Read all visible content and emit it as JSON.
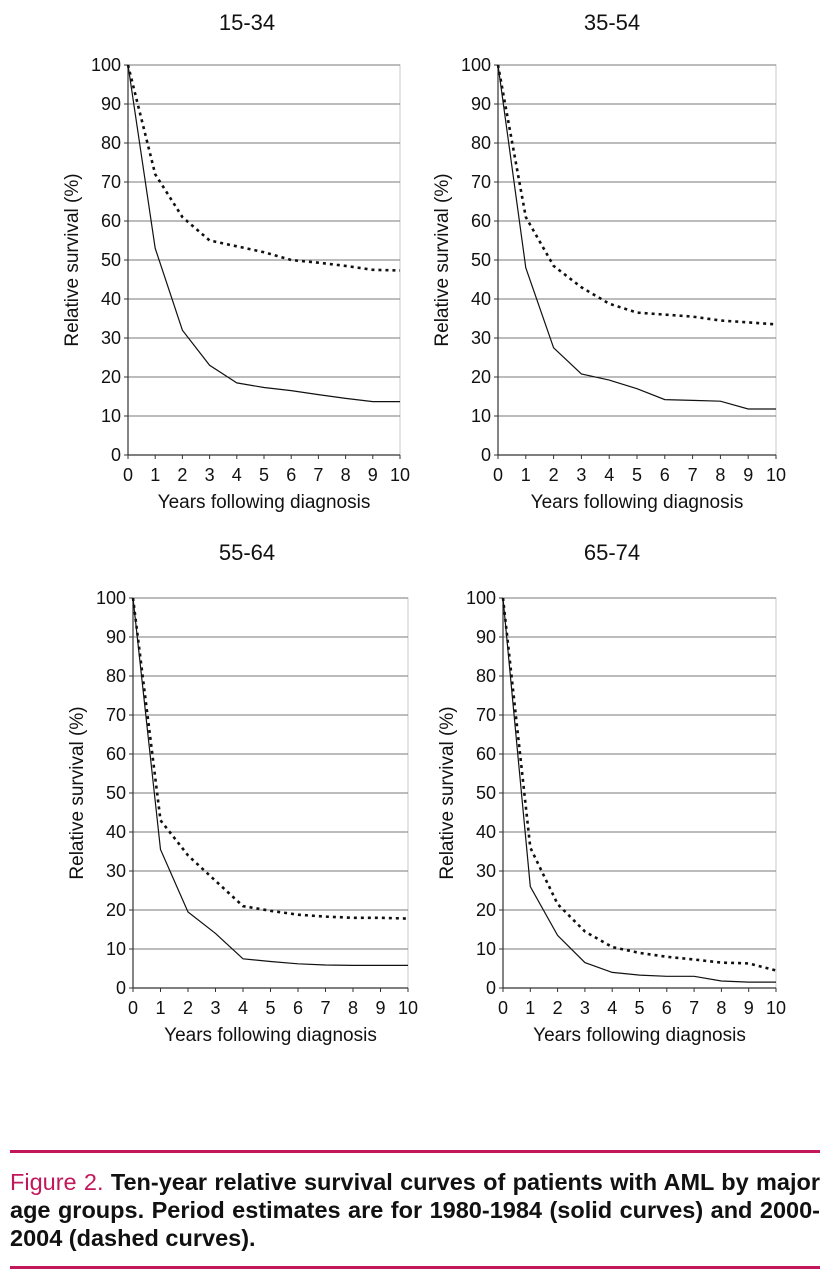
{
  "colors": {
    "accent": "#c2185b",
    "text": "#111111",
    "grid": "#7a7a7a"
  },
  "chart_data": [
    {
      "type": "line",
      "title": "15-34",
      "xlabel": "Years following diagnosis",
      "ylabel": "Relative survival (%)",
      "xlim": [
        0,
        10
      ],
      "ylim": [
        0,
        100
      ],
      "xticks": [
        "0",
        "1",
        "2",
        "3",
        "4",
        "5",
        "6",
        "7",
        "8",
        "9",
        "10"
      ],
      "yticks": [
        "0",
        "10",
        "20",
        "30",
        "40",
        "50",
        "60",
        "70",
        "80",
        "90",
        "100"
      ],
      "series": [
        {
          "name": "1980-1984",
          "style": "solid",
          "x": [
            0,
            1,
            2,
            3,
            4,
            5,
            6,
            7,
            8,
            9,
            10
          ],
          "y": [
            100,
            53,
            32,
            23,
            18.5,
            17.3,
            16.5,
            15.5,
            14.5,
            13.7,
            13.7
          ]
        },
        {
          "name": "2000-2004",
          "style": "dashed",
          "x": [
            0,
            1,
            2,
            3,
            4,
            5,
            6,
            7,
            8,
            9,
            10
          ],
          "y": [
            100,
            72,
            61,
            55,
            53.5,
            52,
            50,
            49.3,
            48.5,
            47.5,
            47.3
          ]
        }
      ]
    },
    {
      "type": "line",
      "title": "35-54",
      "xlabel": "Years following diagnosis",
      "ylabel": "Relative survival (%)",
      "xlim": [
        0,
        10
      ],
      "ylim": [
        0,
        100
      ],
      "xticks": [
        "0",
        "1",
        "2",
        "3",
        "4",
        "5",
        "6",
        "7",
        "8",
        "9",
        "10"
      ],
      "yticks": [
        "0",
        "10",
        "20",
        "30",
        "40",
        "50",
        "60",
        "70",
        "80",
        "90",
        "100"
      ],
      "series": [
        {
          "name": "1980-1984",
          "style": "solid",
          "x": [
            0,
            1,
            2,
            3,
            4,
            5,
            6,
            7,
            8,
            9,
            10
          ],
          "y": [
            100,
            48,
            27.5,
            20.8,
            19.2,
            17,
            14.2,
            14,
            13.8,
            11.8,
            11.8
          ]
        },
        {
          "name": "2000-2004",
          "style": "dashed",
          "x": [
            0,
            1,
            2,
            3,
            4,
            5,
            6,
            7,
            8,
            9,
            10
          ],
          "y": [
            100,
            61,
            48.5,
            43,
            38.8,
            36.5,
            36,
            35.5,
            34.5,
            34,
            33.5
          ]
        }
      ]
    },
    {
      "type": "line",
      "title": "55-64",
      "xlabel": "Years following diagnosis",
      "ylabel": "Relative survival (%)",
      "xlim": [
        0,
        10
      ],
      "ylim": [
        0,
        100
      ],
      "xticks": [
        "0",
        "1",
        "2",
        "3",
        "4",
        "5",
        "6",
        "7",
        "8",
        "9",
        "10"
      ],
      "yticks": [
        "0",
        "10",
        "20",
        "30",
        "40",
        "50",
        "60",
        "70",
        "80",
        "90",
        "100"
      ],
      "series": [
        {
          "name": "1980-1984",
          "style": "solid",
          "x": [
            0,
            1,
            2,
            3,
            4,
            5,
            6,
            7,
            8,
            9,
            10
          ],
          "y": [
            100,
            35.5,
            19.5,
            14,
            7.5,
            6.8,
            6.2,
            5.9,
            5.8,
            5.8,
            5.8
          ]
        },
        {
          "name": "2000-2004",
          "style": "dashed",
          "x": [
            0,
            1,
            2,
            3,
            4,
            5,
            6,
            7,
            8,
            9,
            10
          ],
          "y": [
            100,
            43,
            34,
            27.5,
            21,
            19.8,
            18.8,
            18.3,
            18,
            18,
            17.8
          ]
        }
      ]
    },
    {
      "type": "line",
      "title": "65-74",
      "xlabel": "Years following diagnosis",
      "ylabel": "Relative survival (%)",
      "xlim": [
        0,
        10
      ],
      "ylim": [
        0,
        100
      ],
      "xticks": [
        "0",
        "1",
        "2",
        "3",
        "4",
        "5",
        "6",
        "7",
        "8",
        "9",
        "10"
      ],
      "yticks": [
        "0",
        "10",
        "20",
        "30",
        "40",
        "50",
        "60",
        "70",
        "80",
        "90",
        "100"
      ],
      "series": [
        {
          "name": "1980-1984",
          "style": "solid",
          "x": [
            0,
            1,
            2,
            3,
            4,
            5,
            6,
            7,
            8,
            9,
            10
          ],
          "y": [
            100,
            26,
            13.5,
            6.5,
            4,
            3.3,
            3,
            3,
            1.8,
            1.5,
            1.5
          ]
        },
        {
          "name": "2000-2004",
          "style": "dashed",
          "x": [
            0,
            1,
            2,
            3,
            4,
            5,
            6,
            7,
            8,
            9,
            10
          ],
          "y": [
            100,
            36,
            21.5,
            14.5,
            10.5,
            9,
            8,
            7.3,
            6.5,
            6.3,
            4.5
          ]
        }
      ]
    }
  ],
  "caption": {
    "lead": "Figure 2.",
    "text": "Ten-year relative survival curves of patients with AML by major age groups. Period estimates are for 1980-1984 (solid curves) and 2000-2004 (dashed curves)."
  }
}
